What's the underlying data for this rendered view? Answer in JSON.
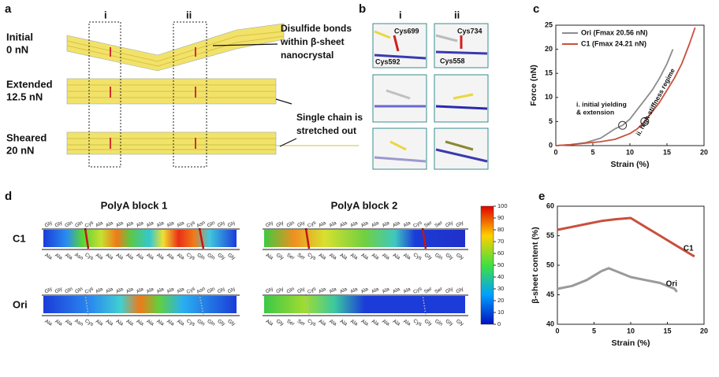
{
  "panel_a": {
    "label": "a",
    "columns": [
      "i",
      "ii"
    ],
    "rows": [
      {
        "name": "Initial",
        "force": "0 nN"
      },
      {
        "name": "Extended",
        "force": "12.5 nN"
      },
      {
        "name": "Sheared",
        "force": "20 nN"
      }
    ],
    "annotations": [
      [
        "Disulfide bonds",
        "within β-sheet",
        "nanocrystal"
      ],
      [
        "Single chain is",
        "stretched out"
      ]
    ]
  },
  "panel_b": {
    "label": "b",
    "columns": [
      "i",
      "ii"
    ],
    "residues": [
      "Cys699",
      "Cys592",
      "Cys734",
      "Cys558"
    ]
  },
  "panel_d": {
    "label": "d",
    "rows": [
      "C1",
      "Ori"
    ],
    "blocks": [
      {
        "title": "PolyA block 1",
        "top": [
          "Gly",
          "Gly",
          "Gln",
          "Gln",
          "Cys",
          "Ala",
          "Ala",
          "Ala",
          "Ala",
          "Ala",
          "Ala",
          "Ala",
          "Ala",
          "Ala",
          "Cys",
          "Asn",
          "Gln",
          "Gly",
          "Gly"
        ],
        "bottom": [
          "Ala",
          "Ala",
          "Ala",
          "Asn",
          "Cys",
          "Ala",
          "Ala",
          "Ala",
          "Ala",
          "Ala",
          "Ala",
          "Ala",
          "Ala",
          "Ala",
          "Cys",
          "Gln",
          "Gln",
          "Gly",
          "Gly"
        ]
      },
      {
        "title": "PolyA block 2",
        "top": [
          "Gly",
          "Gly",
          "Gln",
          "Gly",
          "Cys",
          "Ala",
          "Ala",
          "Ala",
          "Ala",
          "Ala",
          "Ala",
          "Ala",
          "Ala",
          "Ala",
          "Cys",
          "Ser",
          "Ser",
          "Gly",
          "Gly"
        ],
        "bottom": [
          "Ala",
          "Gly",
          "Ser",
          "Ser",
          "Cys",
          "Ala",
          "Ala",
          "Ala",
          "Ala",
          "Ala",
          "Ala",
          "Ala",
          "Ala",
          "Ala",
          "Cys",
          "Gly",
          "Gln",
          "Gly",
          "Gly"
        ]
      }
    ],
    "colorbar_ticks": [
      0,
      10,
      20,
      30,
      40,
      50,
      60,
      70,
      80,
      90,
      100
    ],
    "colorbar_lim": [
      0,
      100
    ]
  },
  "chart_data": [
    {
      "type": "line",
      "label": "c",
      "xlabel": "Strain (%)",
      "ylabel": "Force (nN)",
      "xlim": [
        0,
        20
      ],
      "xticks": [
        0,
        5,
        10,
        15,
        20
      ],
      "ylim": [
        0,
        25
      ],
      "yticks": [
        0,
        5,
        10,
        15,
        20,
        25
      ],
      "legend": "upper left",
      "annotations": [
        "i. initial yielding",
        "& extension",
        "ii. high-stiffness regime"
      ],
      "series": [
        {
          "name": "Ori (Fmax 20.56 nN)",
          "color": "#8c8c8c",
          "x": [
            0,
            2,
            4,
            6,
            7,
            8,
            9,
            10,
            11,
            12,
            13,
            14,
            15,
            15.8
          ],
          "values": [
            0,
            0.2,
            0.6,
            1.5,
            2.5,
            3.5,
            4.2,
            5.5,
            7.5,
            9.5,
            11.5,
            14,
            17,
            20
          ]
        },
        {
          "name": "C1 (Fmax 24.21 nN)",
          "color": "#c8503c",
          "x": [
            0,
            2,
            4,
            6,
            8,
            10,
            11,
            12,
            13,
            14,
            15,
            16,
            17,
            18,
            18.8
          ],
          "values": [
            0,
            0.2,
            0.5,
            0.8,
            1.3,
            2.5,
            3.5,
            5,
            7,
            9,
            11.5,
            14,
            17,
            21,
            24.5
          ]
        }
      ]
    },
    {
      "type": "line",
      "label": "e",
      "xlabel": "Strain (%)",
      "ylabel": "β-sheet content (%)",
      "xlim": [
        0,
        20
      ],
      "xticks": [
        0,
        5,
        10,
        15,
        20
      ],
      "ylim": [
        40,
        60
      ],
      "yticks": [
        40,
        45,
        50,
        55,
        60
      ],
      "legend": "inline",
      "series": [
        {
          "name": "C1",
          "color": "#c8503c",
          "x": [
            0,
            2,
            4,
            6,
            8,
            10,
            12,
            14,
            16,
            18,
            18.7
          ],
          "values": [
            56,
            56.5,
            57,
            57.5,
            57.8,
            58,
            56.5,
            55,
            53.5,
            52,
            51.5
          ]
        },
        {
          "name": "Ori",
          "color": "#9a9a9a",
          "x": [
            0,
            2,
            4,
            6,
            7,
            8,
            10,
            12,
            14,
            16,
            16.3
          ],
          "values": [
            46,
            46.5,
            47.5,
            49,
            49.5,
            49,
            48,
            47.5,
            47,
            46,
            45.5
          ]
        }
      ]
    }
  ]
}
